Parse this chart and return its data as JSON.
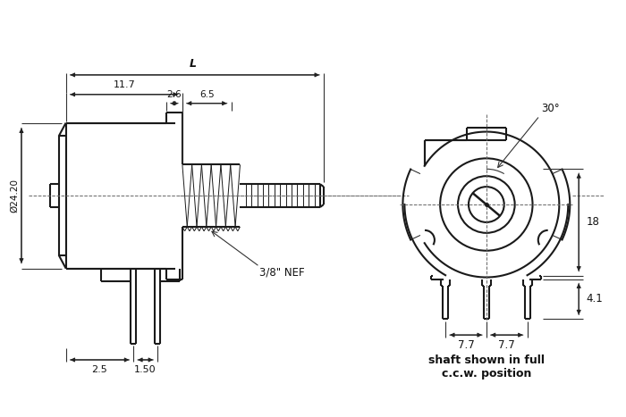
{
  "lc": "#1a1a1a",
  "lw": 1.5,
  "lw_t": 0.7,
  "lw_d": 0.8,
  "tc": "#111111",
  "annotations": {
    "dim_11_7": "11.7",
    "dim_L": "L",
    "dim_2_6": "2.6",
    "dim_6_5": "6.5",
    "dim_24_20": "Ø24.20",
    "dim_3_8_NEF": "3/8\" NEF",
    "dim_2_5": "2.5",
    "dim_1_50": "1.50",
    "dim_30": "30°",
    "dim_18": "18",
    "dim_4_1": "4.1",
    "dim_7_7": "7.7",
    "caption": "shaft shown in full\nc.c.w. position"
  }
}
